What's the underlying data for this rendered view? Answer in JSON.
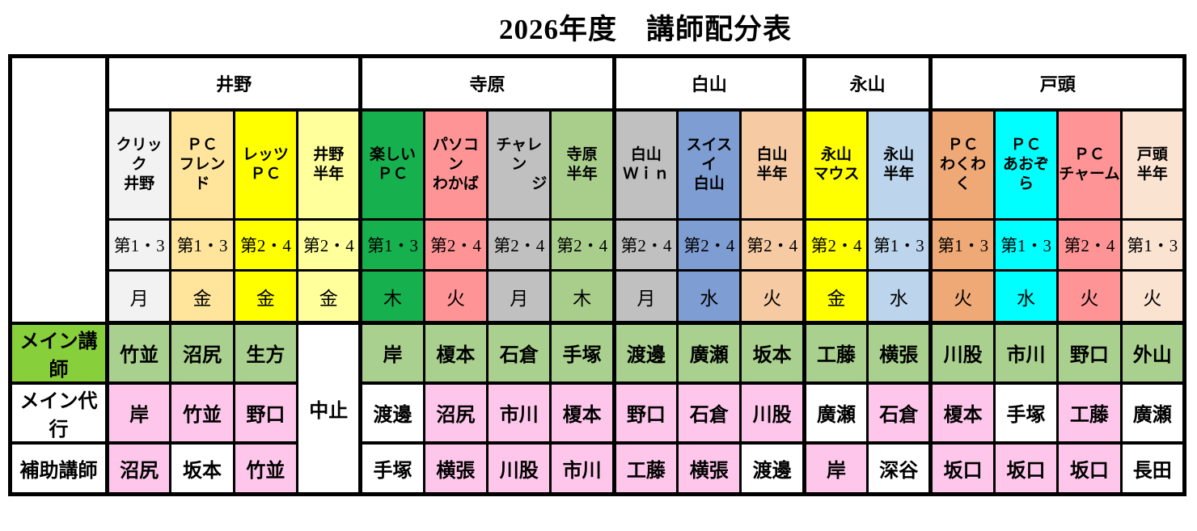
{
  "title": "2026年度　講師配分表",
  "table": {
    "groups": [
      {
        "name": "井野",
        "span": 4
      },
      {
        "name": "寺原",
        "span": 4
      },
      {
        "name": "白山",
        "span": 3
      },
      {
        "name": "永山",
        "span": 2
      },
      {
        "name": "戸頭",
        "span": 4
      }
    ],
    "row_labels": {
      "main": "メイン講師",
      "sub": "メイン代行",
      "assist": "補助講師"
    },
    "cancelled_label": "中止",
    "cell_colors": {
      "green": "#A9D08E",
      "pink": "#FFC6EC",
      "white": "#FFFFFF",
      "label_green": "#87CF3B"
    },
    "columns": [
      {
        "group": "井野",
        "class_lines": [
          "クリック",
          "井野"
        ],
        "color": "#F2F2F2",
        "week": "第1・3",
        "day": "月",
        "main": {
          "name": "竹並",
          "bg": "green"
        },
        "sub": {
          "name": "岸",
          "bg": "pink"
        },
        "assist": {
          "name": "沼尻",
          "bg": "pink"
        }
      },
      {
        "group": "井野",
        "class_lines": [
          "ＰＣ",
          "フレンド"
        ],
        "color": "#FFE49C",
        "week": "第1・3",
        "day": "金",
        "main": {
          "name": "沼尻",
          "bg": "green"
        },
        "sub": {
          "name": "竹並",
          "bg": "pink"
        },
        "assist": {
          "name": "坂本",
          "bg": "white"
        }
      },
      {
        "group": "井野",
        "class_lines": [
          "レッツ",
          "ＰＣ"
        ],
        "color": "#FFFF00",
        "week": "第2・4",
        "day": "金",
        "main": {
          "name": "生方",
          "bg": "green"
        },
        "sub": {
          "name": "野口",
          "bg": "pink"
        },
        "assist": {
          "name": "竹並",
          "bg": "pink"
        }
      },
      {
        "group": "井野",
        "class_lines": [
          "井野",
          "半年"
        ],
        "color": "#FFFF9C",
        "week": "第2・4",
        "day": "金",
        "cancelled": true
      },
      {
        "group": "寺原",
        "class_lines": [
          "楽しい",
          "ＰＣ"
        ],
        "color": "#17B04E",
        "week": "第1・3",
        "day": "木",
        "main": {
          "name": "岸",
          "bg": "green"
        },
        "sub": {
          "name": "渡邊",
          "bg": "white"
        },
        "assist": {
          "name": "手塚",
          "bg": "white"
        }
      },
      {
        "group": "寺原",
        "class_lines": [
          "パソコン",
          "わかば"
        ],
        "color": "#FF9496",
        "week": "第2・4",
        "day": "火",
        "main": {
          "name": "榎本",
          "bg": "green"
        },
        "sub": {
          "name": "沼尻",
          "bg": "pink"
        },
        "assist": {
          "name": "横張",
          "bg": "pink"
        }
      },
      {
        "group": "寺原",
        "class_lines": [
          "チャレン",
          "ジ"
        ],
        "color": "#C0C0C0",
        "week": "第2・4",
        "day": "月",
        "line2_right": true,
        "main": {
          "name": "石倉",
          "bg": "green"
        },
        "sub": {
          "name": "市川",
          "bg": "pink"
        },
        "assist": {
          "name": "川股",
          "bg": "pink"
        }
      },
      {
        "group": "寺原",
        "class_lines": [
          "寺原",
          "半年"
        ],
        "color": "#A9CE8C",
        "week": "第2・4",
        "day": "木",
        "main": {
          "name": "手塚",
          "bg": "green"
        },
        "sub": {
          "name": "榎本",
          "bg": "pink"
        },
        "assist": {
          "name": "市川",
          "bg": "pink"
        }
      },
      {
        "group": "白山",
        "class_lines": [
          "白山",
          "Ｗｉｎ"
        ],
        "color": "#C0C0C0",
        "week": "第2・4",
        "day": "月",
        "main": {
          "name": "渡邊",
          "bg": "green"
        },
        "sub": {
          "name": "野口",
          "bg": "pink"
        },
        "assist": {
          "name": "工藤",
          "bg": "pink"
        }
      },
      {
        "group": "白山",
        "class_lines": [
          "スイスイ",
          "白山"
        ],
        "color": "#7E9DD3",
        "week": "第2・4",
        "day": "水",
        "main": {
          "name": "廣瀬",
          "bg": "green"
        },
        "sub": {
          "name": "石倉",
          "bg": "pink"
        },
        "assist": {
          "name": "横張",
          "bg": "pink"
        }
      },
      {
        "group": "白山",
        "class_lines": [
          "白山",
          "半年"
        ],
        "color": "#F6CBA4",
        "week": "第2・4",
        "day": "火",
        "main": {
          "name": "坂本",
          "bg": "green"
        },
        "sub": {
          "name": "川股",
          "bg": "pink"
        },
        "assist": {
          "name": "渡邊",
          "bg": "white"
        }
      },
      {
        "group": "永山",
        "class_lines": [
          "永山",
          "マウス"
        ],
        "color": "#FFFF00",
        "week": "第2・4",
        "day": "金",
        "main": {
          "name": "工藤",
          "bg": "green"
        },
        "sub": {
          "name": "廣瀬",
          "bg": "white"
        },
        "assist": {
          "name": "岸",
          "bg": "pink"
        }
      },
      {
        "group": "永山",
        "class_lines": [
          "永山",
          "半年"
        ],
        "color": "#BCD5EC",
        "week": "第1・3",
        "day": "水",
        "main": {
          "name": "横張",
          "bg": "green"
        },
        "sub": {
          "name": "石倉",
          "bg": "pink"
        },
        "assist": {
          "name": "深谷",
          "bg": "white"
        }
      },
      {
        "group": "戸頭",
        "class_lines": [
          "ＰＣ",
          "わくわく"
        ],
        "color": "#EFA977",
        "week": "第1・3",
        "day": "火",
        "main": {
          "name": "川股",
          "bg": "green"
        },
        "sub": {
          "name": "榎本",
          "bg": "pink"
        },
        "assist": {
          "name": "坂口",
          "bg": "pink"
        }
      },
      {
        "group": "戸頭",
        "class_lines": [
          "ＰＣ",
          "あおぞら"
        ],
        "color": "#00FFFF",
        "week": "第1・3",
        "day": "水",
        "main": {
          "name": "市川",
          "bg": "green"
        },
        "sub": {
          "name": "手塚",
          "bg": "white"
        },
        "assist": {
          "name": "坂口",
          "bg": "pink"
        }
      },
      {
        "group": "戸頭",
        "class_lines": [
          "ＰＣ",
          "チャーム"
        ],
        "color": "#FF9496",
        "week": "第2・4",
        "day": "火",
        "main": {
          "name": "野口",
          "bg": "green"
        },
        "sub": {
          "name": "工藤",
          "bg": "pink"
        },
        "assist": {
          "name": "坂口",
          "bg": "pink"
        }
      },
      {
        "group": "戸頭",
        "class_lines": [
          "戸頭",
          "半年"
        ],
        "color": "#FBE3D2",
        "week": "第1・3",
        "day": "火",
        "main": {
          "name": "外山",
          "bg": "green"
        },
        "sub": {
          "name": "廣瀬",
          "bg": "white"
        },
        "assist": {
          "name": "長田",
          "bg": "white"
        }
      }
    ]
  }
}
